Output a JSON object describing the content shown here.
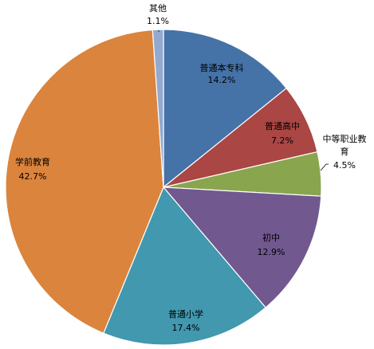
{
  "chart_data": {
    "type": "pie",
    "title": "",
    "start": "12 o'clock",
    "direction": "clockwise",
    "slices": [
      {
        "name": "普通本专科",
        "value": 14.2,
        "label": "14.2%",
        "color": "#4572a7"
      },
      {
        "name": "普通高中",
        "value": 7.2,
        "label": "7.2%",
        "color": "#aa4643"
      },
      {
        "name_lines": [
          "中等职业教",
          "育"
        ],
        "value": 4.5,
        "label": "4.5%",
        "color": "#89a54e"
      },
      {
        "name": "初中",
        "value": 12.9,
        "label": "12.9%",
        "color": "#71588f"
      },
      {
        "name": "普通小学",
        "value": 17.4,
        "label": "17.4%",
        "color": "#4198af"
      },
      {
        "name": "学前教育",
        "value": 42.7,
        "label": "42.7%",
        "color": "#db843d"
      },
      {
        "name": "其他",
        "value": 1.1,
        "label": "1.1%",
        "color": "#93a9cf"
      }
    ]
  }
}
